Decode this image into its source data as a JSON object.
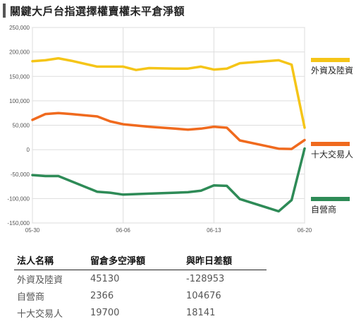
{
  "title": "關鍵大戶台指選擇權賣權未平倉淨額",
  "chart_data": {
    "type": "line",
    "ylim": [
      -150000,
      250000
    ],
    "yticks": [
      250000,
      200000,
      150000,
      100000,
      50000,
      0,
      -50000,
      -100000,
      -150000
    ],
    "ytick_labels": [
      "250,000",
      "200,000",
      "150,000",
      "100,000",
      "50,000",
      "0",
      "-50,000",
      "-100,000",
      "-150,000"
    ],
    "x_dates": [
      "05-30",
      "05-31",
      "06-01",
      "06-02",
      "06-03",
      "06-04",
      "06-05",
      "06-06",
      "06-07",
      "06-08",
      "06-09",
      "06-10",
      "06-11",
      "06-12",
      "06-13",
      "06-14",
      "06-15",
      "06-16",
      "06-17",
      "06-18",
      "06-19",
      "06-20"
    ],
    "x_tick_labels": [
      "05-30",
      "06-06",
      "06-13",
      "06-20"
    ],
    "x_tick_positions": [
      0,
      7,
      14,
      21
    ],
    "grid": true,
    "series": [
      {
        "name": "外資及陸資",
        "color": "#F5C518",
        "points": [
          [
            0,
            181000
          ],
          [
            1,
            183000
          ],
          [
            2,
            187000
          ],
          [
            3,
            182000
          ],
          [
            5,
            170000
          ],
          [
            7,
            170000
          ],
          [
            8,
            163000
          ],
          [
            9,
            167000
          ],
          [
            11,
            166000
          ],
          [
            12,
            166000
          ],
          [
            13,
            170000
          ],
          [
            14,
            164000
          ],
          [
            15,
            166000
          ],
          [
            16,
            177000
          ],
          [
            19,
            183000
          ],
          [
            20,
            174000
          ],
          [
            21,
            45130
          ]
        ]
      },
      {
        "name": "十大交易人",
        "color": "#F06A1E",
        "points": [
          [
            0,
            61000
          ],
          [
            1,
            73000
          ],
          [
            2,
            75000
          ],
          [
            3,
            73000
          ],
          [
            5,
            68000
          ],
          [
            6,
            58000
          ],
          [
            7,
            52000
          ],
          [
            9,
            47000
          ],
          [
            11,
            43000
          ],
          [
            12,
            41000
          ],
          [
            13,
            43000
          ],
          [
            14,
            47000
          ],
          [
            15,
            45000
          ],
          [
            16,
            19000
          ],
          [
            19,
            2000
          ],
          [
            20,
            1500
          ],
          [
            21,
            19700
          ]
        ]
      },
      {
        "name": "自營商",
        "color": "#2E8B57",
        "points": [
          [
            0,
            -52000
          ],
          [
            1,
            -54000
          ],
          [
            2,
            -54000
          ],
          [
            5,
            -86000
          ],
          [
            6,
            -88000
          ],
          [
            7,
            -92000
          ],
          [
            9,
            -90000
          ],
          [
            11,
            -88000
          ],
          [
            12,
            -87000
          ],
          [
            13,
            -84000
          ],
          [
            14,
            -73000
          ],
          [
            15,
            -74000
          ],
          [
            16,
            -101000
          ],
          [
            19,
            -126000
          ],
          [
            20,
            -103000
          ],
          [
            21,
            2366
          ]
        ]
      }
    ]
  },
  "table": {
    "headers": [
      "法人名稱",
      "留倉多空淨額",
      "與昨日差額"
    ],
    "rows": [
      [
        "外資及陸資",
        "45130",
        "-128953"
      ],
      [
        "自營商",
        "2366",
        "104676"
      ],
      [
        "十大交易人",
        "19700",
        "18141"
      ]
    ]
  }
}
